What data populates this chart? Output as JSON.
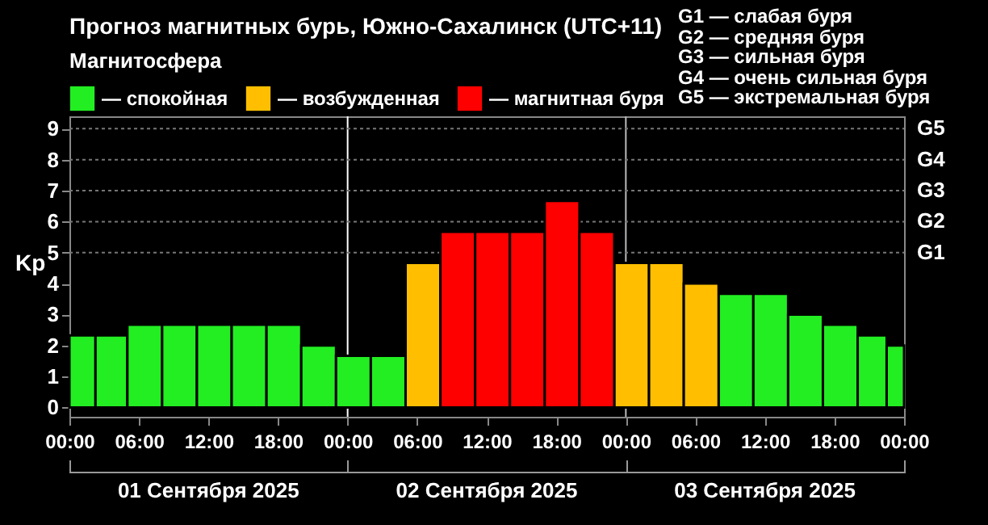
{
  "chart_data": {
    "type": "bar",
    "title": "Прогноз магнитных бурь, Южно-Сахалинск (UTC+11)",
    "ylabel": "Kp",
    "legend_title": "Магнитосфера",
    "legend": "top left",
    "x": [
      "2025-09-01T01:00",
      "2025-09-01T03:30",
      "2025-09-01T06:30",
      "2025-09-01T09:30",
      "2025-09-01T12:30",
      "2025-09-01T15:30",
      "2025-09-01T18:30",
      "2025-09-01T21:30",
      "2025-09-02T00:30",
      "2025-09-02T03:30",
      "2025-09-02T06:30",
      "2025-09-02T09:30",
      "2025-09-02T12:30",
      "2025-09-02T15:30",
      "2025-09-02T18:30",
      "2025-09-02T21:30",
      "2025-09-03T00:30",
      "2025-09-03T03:30",
      "2025-09-03T06:30",
      "2025-09-03T09:30",
      "2025-09-03T12:30",
      "2025-09-03T15:30",
      "2025-09-03T18:30",
      "2025-09-03T21:30",
      "2025-09-03T23:30"
    ],
    "series": [
      {
        "name": "— спокойная",
        "color": "#22ee22",
        "values": [
          2.33,
          2.33,
          2.67,
          2.67,
          2.67,
          2.67,
          2.67,
          2.0,
          1.67,
          1.67,
          null,
          null,
          null,
          null,
          null,
          null,
          null,
          null,
          null,
          3.67,
          3.67,
          3.0,
          2.67,
          2.33,
          2.0
        ]
      },
      {
        "name": "— возбужденная",
        "color": "#ffbf00",
        "values": [
          null,
          null,
          null,
          null,
          null,
          null,
          null,
          null,
          null,
          null,
          4.67,
          null,
          null,
          null,
          null,
          null,
          4.67,
          4.67,
          4.0,
          null,
          null,
          null,
          null,
          null,
          null
        ]
      },
      {
        "name": "— магнитная буря",
        "color": "#ff0000",
        "values": [
          null,
          null,
          null,
          null,
          null,
          null,
          null,
          null,
          null,
          null,
          null,
          5.67,
          5.67,
          5.67,
          6.67,
          5.67,
          null,
          null,
          null,
          null,
          null,
          null,
          null,
          null,
          null
        ]
      }
    ],
    "xlim": [
      "2025-09-01T00:00",
      "2025-09-04T00:00"
    ],
    "xticks": [
      {
        "value": "2025-09-01T00:00",
        "label": "00:00"
      },
      {
        "value": "2025-09-01T06:00",
        "label": "06:00"
      },
      {
        "value": "2025-09-01T12:00",
        "label": "12:00"
      },
      {
        "value": "2025-09-01T18:00",
        "label": "18:00"
      },
      {
        "value": "2025-09-02T00:00",
        "label": "00:00"
      },
      {
        "value": "2025-09-02T06:00",
        "label": "06:00"
      },
      {
        "value": "2025-09-02T12:00",
        "label": "12:00"
      },
      {
        "value": "2025-09-02T18:00",
        "label": "18:00"
      },
      {
        "value": "2025-09-03T00:00",
        "label": "00:00"
      },
      {
        "value": "2025-09-03T06:00",
        "label": "06:00"
      },
      {
        "value": "2025-09-03T12:00",
        "label": "12:00"
      },
      {
        "value": "2025-09-03T18:00",
        "label": "18:00"
      },
      {
        "value": "2025-09-04T00:00",
        "label": "00:00"
      }
    ],
    "ylim": [
      -0.3,
      9.4
    ],
    "yticks": [
      0,
      1,
      2,
      3,
      4,
      5,
      6,
      7,
      8,
      9
    ],
    "ref_lines": [
      {
        "axis": "x",
        "value": "2025-09-02T00:00",
        "color": "#ffffff"
      },
      {
        "axis": "x",
        "value": "2025-09-03T00:00",
        "color": "#bbbbbb"
      },
      {
        "axis": "y",
        "value": 5,
        "label": "G1",
        "color": "#777777",
        "line_style": "dotted"
      },
      {
        "axis": "y",
        "value": 6,
        "label": "G2",
        "color": "#777777",
        "line_style": "dotted"
      },
      {
        "axis": "y",
        "value": 7,
        "label": "G3",
        "color": "#777777",
        "line_style": "dotted"
      },
      {
        "axis": "y",
        "value": 8,
        "label": "G4",
        "color": "#777777",
        "line_style": "dotted"
      },
      {
        "axis": "y",
        "value": 9,
        "label": "G5",
        "color": "#777777",
        "line_style": "dotted"
      }
    ],
    "annotations": [
      "01 Сентября 2025",
      "02 Сентября 2025",
      "03 Сентября 2025",
      "G1 — слабая буря",
      "G2 — средняя буря",
      "G3 — сильная буря",
      "G4 — очень сильная буря",
      "G5 — экстремальная буря"
    ]
  }
}
